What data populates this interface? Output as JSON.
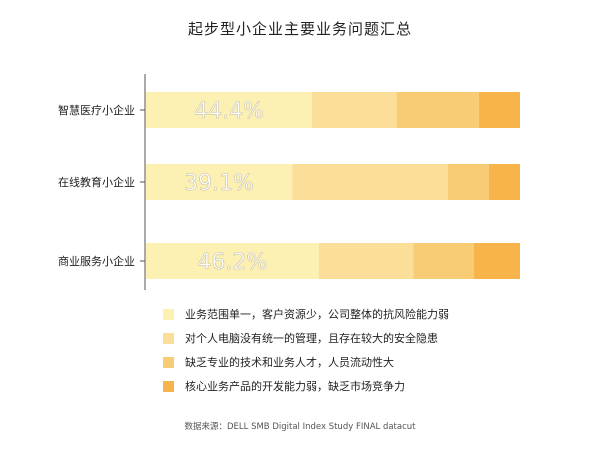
{
  "chart_data": {
    "type": "bar",
    "orientation": "horizontal",
    "stacked": true,
    "title": "起步型小企业主要业务问题汇总",
    "categories": [
      "智慧医疗小企业",
      "在线教育小企业",
      "商业服务小企业"
    ],
    "series": [
      {
        "name": "业务范围单一，客户资源少，公司整体的抗风险能力弱",
        "color": "#FDF0B3",
        "values": [
          44.4,
          39.1,
          46.2
        ]
      },
      {
        "name": "对个人电脑没有统一的管理，且存在较大的安全隐患",
        "color": "#FBDF98",
        "values": [
          22.6,
          41.6,
          25.3
        ]
      },
      {
        "name": "缺乏专业的技术和业务人才，人员流动性大",
        "color": "#F8CC75",
        "values": [
          22.0,
          11.0,
          16.2
        ]
      },
      {
        "name": "核心业务产品的开发能力弱，缺乏市场竞争力",
        "color": "#F6B44B",
        "values": [
          11.0,
          8.3,
          12.3
        ]
      }
    ],
    "data_labels": [
      "44.4%",
      "39.1%",
      "46.2%"
    ],
    "xlim": [
      0,
      100
    ],
    "grid": false,
    "legend_position": "bottom"
  },
  "source": "数据来源：DELL SMB Digital Index Study FINAL datacut"
}
